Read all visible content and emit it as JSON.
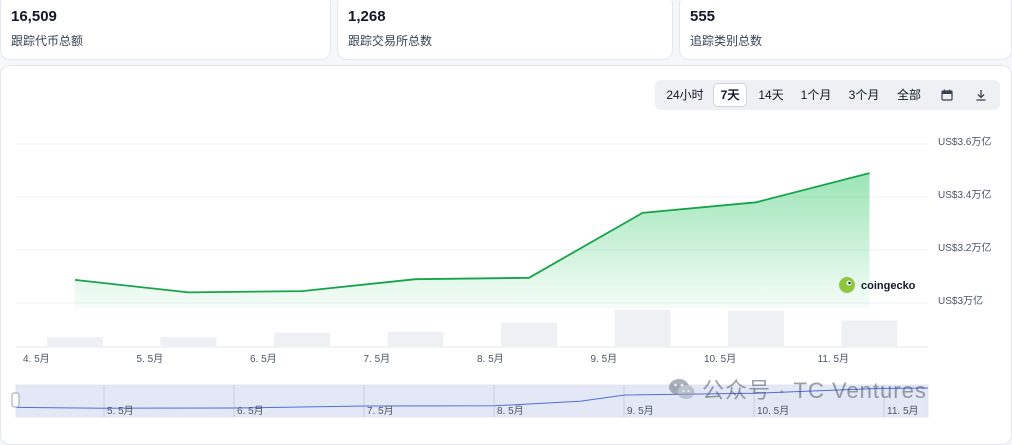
{
  "stats": [
    {
      "value": "16,509",
      "label": "跟踪代币总额"
    },
    {
      "value": "1,268",
      "label": "跟踪交易所总数"
    },
    {
      "value": "555",
      "label": "追踪类别总数"
    }
  ],
  "range_buttons": [
    "24小时",
    "7天",
    "14天",
    "1个月",
    "3个月",
    "全部"
  ],
  "active_range": "7天",
  "icons": {
    "calendar": "calendar-icon",
    "download": "download-icon",
    "brand": "coingecko-logo-icon",
    "wechat": "wechat-icon"
  },
  "brand_label": "coingecko",
  "watermark": "公众号 · TC Ventures",
  "colors": {
    "line": "#16a34a",
    "area": "#22c55e",
    "volume": "#eef0f3",
    "navigator_line": "#4f6fd8",
    "navigator_fill": "#dde3f7"
  },
  "chart_data": {
    "type": "area",
    "x": [
      "4. 5月",
      "5. 5月",
      "6. 5月",
      "7. 5月",
      "8. 5月",
      "9. 5月",
      "10. 5月",
      "11. 5月"
    ],
    "series": [
      {
        "values": [
          3.087,
          3.04,
          3.045,
          3.09,
          3.095,
          3.34,
          3.38,
          3.49
        ]
      }
    ],
    "volume": [
      0.9,
      0.9,
      1.3,
      1.4,
      2.2,
      3.4,
      3.3,
      2.4
    ],
    "y_ticks": [
      "US$3万亿",
      "US$3.2万亿",
      "US$3.4万亿",
      "US$3.6万亿"
    ],
    "ylim": [
      2.85,
      3.6
    ],
    "navigator_ticks": [
      "5. 5月",
      "6. 5月",
      "7. 5月",
      "8. 5月",
      "9. 5月",
      "10. 5月",
      "11. 5月"
    ],
    "grid": true
  }
}
